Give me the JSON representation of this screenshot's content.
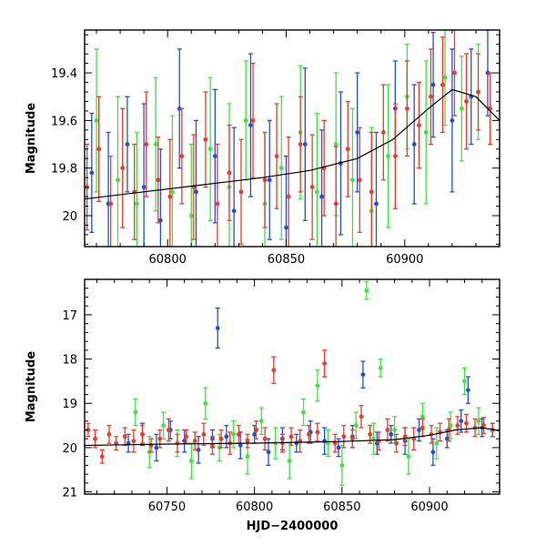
{
  "colors": {
    "blue": "#1f4fe0",
    "green": "#3ce63c",
    "red": "#f0392b",
    "model": "#000000"
  },
  "chart_data": [
    {
      "id": "top",
      "type": "scatter",
      "title": "",
      "xlabel": "",
      "ylabel": "Magnitude",
      "xlim": [
        60765,
        60940
      ],
      "ylim": [
        20.13,
        19.22
      ],
      "y_inverted": true,
      "grid": false,
      "xticks": [
        60800,
        60850,
        60900
      ],
      "xtick_labels": [
        "60800",
        "60850",
        "60900"
      ],
      "yticks": [
        19.4,
        19.6,
        19.8,
        20.0
      ],
      "ytick_labels": [
        "19.4",
        "19.6",
        "19.8",
        "20"
      ],
      "series": [
        {
          "color_key": "blue",
          "x": [
            60768,
            60775,
            60783,
            60790,
            60797,
            60805,
            60812,
            60820,
            60828,
            60835,
            60843,
            60850,
            60858,
            60865,
            60873,
            60880,
            60888,
            60896,
            60904,
            60912,
            60920,
            60928,
            60935
          ],
          "y": [
            19.82,
            19.95,
            19.7,
            19.88,
            20.02,
            19.55,
            19.9,
            19.75,
            19.98,
            19.62,
            19.85,
            20.05,
            19.7,
            19.92,
            19.78,
            19.65,
            19.95,
            19.55,
            19.7,
            19.45,
            19.6,
            19.5,
            19.4
          ],
          "err": [
            0.25,
            0.3,
            0.2,
            0.35,
            0.3,
            0.25,
            0.3,
            0.28,
            0.35,
            0.3,
            0.25,
            0.3,
            0.32,
            0.28,
            0.3,
            0.25,
            0.3,
            0.2,
            0.25,
            0.22,
            0.3,
            0.2,
            0.18
          ]
        },
        {
          "color_key": "green",
          "x": [
            60770,
            60779,
            60787,
            60795,
            60802,
            60810,
            60818,
            60826,
            60833,
            60841,
            60848,
            60856,
            60863,
            60871,
            60878,
            60886,
            60893,
            60901,
            60909,
            60917,
            60924,
            60931
          ],
          "y": [
            19.6,
            19.85,
            19.95,
            19.7,
            19.9,
            20.0,
            19.72,
            19.88,
            19.6,
            19.95,
            19.8,
            19.65,
            19.9,
            19.7,
            19.85,
            19.98,
            19.75,
            19.5,
            19.65,
            19.42,
            19.55,
            19.48
          ],
          "err": [
            0.3,
            0.35,
            0.3,
            0.28,
            0.32,
            0.3,
            0.3,
            0.35,
            0.25,
            0.3,
            0.3,
            0.28,
            0.33,
            0.3,
            0.3,
            0.35,
            0.3,
            0.22,
            0.3,
            0.2,
            0.22,
            0.2
          ]
        },
        {
          "color_key": "red",
          "x": [
            60766,
            60771,
            60776,
            60781,
            60786,
            60791,
            60796,
            60801,
            60806,
            60811,
            60816,
            60821,
            60826,
            60831,
            60836,
            60841,
            60846,
            60851,
            60856,
            60861,
            60866,
            60871,
            60876,
            60881,
            60886,
            60891,
            60896,
            60901,
            60906,
            60911,
            60916,
            60921,
            60926,
            60931,
            60936
          ],
          "y": [
            19.88,
            19.72,
            19.95,
            19.8,
            19.9,
            19.7,
            19.85,
            19.92,
            19.75,
            19.88,
            19.68,
            19.95,
            19.82,
            19.9,
            19.6,
            19.85,
            19.75,
            19.92,
            19.7,
            19.88,
            19.8,
            19.95,
            19.72,
            19.85,
            19.9,
            19.65,
            19.75,
            19.55,
            19.62,
            19.5,
            19.45,
            19.4,
            19.52,
            19.48,
            19.55
          ],
          "err": [
            0.18,
            0.22,
            0.2,
            0.25,
            0.2,
            0.22,
            0.18,
            0.24,
            0.2,
            0.22,
            0.2,
            0.25,
            0.2,
            0.22,
            0.24,
            0.2,
            0.22,
            0.25,
            0.2,
            0.22,
            0.2,
            0.24,
            0.2,
            0.22,
            0.25,
            0.2,
            0.22,
            0.2,
            0.18,
            0.2,
            0.2,
            0.18,
            0.2,
            0.16,
            0.15
          ]
        }
      ],
      "model": {
        "x": [
          60765,
          60790,
          60815,
          60840,
          60860,
          60880,
          60895,
          60910,
          60920,
          60930,
          60940
        ],
        "y": [
          19.93,
          19.9,
          19.87,
          19.84,
          19.81,
          19.76,
          19.68,
          19.55,
          19.47,
          19.5,
          19.6
        ]
      }
    },
    {
      "id": "bottom",
      "type": "scatter",
      "title": "",
      "xlabel": "HJD−2400000",
      "ylabel": "Magnitude",
      "xlim": [
        60703,
        60940
      ],
      "ylim": [
        21.05,
        16.2
      ],
      "y_inverted": true,
      "grid": false,
      "xticks": [
        60750,
        60800,
        60850,
        60900
      ],
      "xtick_labels": [
        "60750",
        "60800",
        "60850",
        "60900"
      ],
      "yticks": [
        17,
        18,
        19,
        20,
        21
      ],
      "ytick_labels": [
        "17",
        "18",
        "19",
        "20",
        "21"
      ],
      "series": [
        {
          "color_key": "blue",
          "x": [
            60728,
            60736,
            60744,
            60752,
            60760,
            60768,
            60776,
            60779,
            60784,
            60792,
            60800,
            60808,
            60816,
            60824,
            60832,
            60840,
            60848,
            60856,
            60862,
            60870,
            60878,
            60886,
            60894,
            60902,
            60910,
            60918,
            60922,
            60930,
            60936
          ],
          "y": [
            19.9,
            19.7,
            20.0,
            19.6,
            19.85,
            20.05,
            19.8,
            17.3,
            19.75,
            19.95,
            19.7,
            20.1,
            19.8,
            19.9,
            19.65,
            19.85,
            20.0,
            19.75,
            18.35,
            19.9,
            19.7,
            19.85,
            19.6,
            20.1,
            19.8,
            19.4,
            18.7,
            19.55,
            19.6
          ],
          "err": [
            0.2,
            0.25,
            0.3,
            0.2,
            0.25,
            0.3,
            0.2,
            0.45,
            0.25,
            0.3,
            0.2,
            0.3,
            0.25,
            0.2,
            0.25,
            0.3,
            0.2,
            0.25,
            0.3,
            0.25,
            0.2,
            0.3,
            0.25,
            0.3,
            0.2,
            0.25,
            0.3,
            0.2,
            0.15
          ]
        },
        {
          "color_key": "green",
          "x": [
            60732,
            60740,
            60748,
            60756,
            60764,
            60772,
            60780,
            60788,
            60796,
            60804,
            60812,
            60820,
            60828,
            60836,
            60842,
            60850,
            60858,
            60864,
            60868,
            60872,
            60880,
            60888,
            60896,
            60904,
            60912,
            60920,
            60928
          ],
          "y": [
            19.2,
            20.1,
            19.5,
            19.9,
            20.3,
            19.0,
            20.0,
            19.7,
            20.2,
            19.4,
            19.9,
            20.3,
            19.2,
            18.6,
            19.9,
            20.4,
            19.5,
            16.45,
            19.8,
            18.2,
            19.6,
            20.2,
            19.3,
            19.9,
            19.5,
            18.5,
            19.4
          ],
          "err": [
            0.3,
            0.35,
            0.3,
            0.3,
            0.4,
            0.35,
            0.3,
            0.3,
            0.4,
            0.3,
            0.35,
            0.4,
            0.3,
            0.35,
            0.3,
            0.45,
            0.3,
            0.2,
            0.35,
            0.2,
            0.3,
            0.4,
            0.3,
            0.35,
            0.3,
            0.3,
            0.3
          ]
        },
        {
          "color_key": "red",
          "x": [
            60705,
            60709,
            60713,
            60717,
            60721,
            60726,
            60731,
            60736,
            60741,
            60746,
            60751,
            60756,
            60761,
            60766,
            60771,
            60776,
            60781,
            60786,
            60791,
            60796,
            60801,
            60806,
            60811,
            60816,
            60821,
            60826,
            60831,
            60836,
            60840,
            60846,
            60851,
            60856,
            60861,
            60866,
            60871,
            60876,
            60881,
            60886,
            60891,
            60896,
            60901,
            60906,
            60911,
            60916,
            60921,
            60926,
            60931,
            60936
          ],
          "y": [
            19.6,
            19.8,
            20.2,
            19.7,
            19.9,
            19.75,
            19.85,
            19.7,
            19.95,
            19.8,
            19.6,
            19.9,
            19.75,
            19.85,
            19.7,
            19.95,
            19.8,
            19.9,
            19.7,
            19.85,
            19.6,
            19.8,
            18.25,
            19.9,
            19.75,
            19.85,
            19.7,
            19.65,
            18.1,
            19.9,
            19.75,
            19.8,
            19.3,
            19.7,
            19.85,
            19.6,
            19.9,
            19.75,
            19.8,
            19.55,
            19.7,
            19.65,
            19.6,
            19.5,
            19.45,
            19.55,
            19.5,
            19.6
          ],
          "err": [
            0.15,
            0.2,
            0.15,
            0.2,
            0.15,
            0.2,
            0.25,
            0.2,
            0.15,
            0.2,
            0.25,
            0.2,
            0.15,
            0.2,
            0.25,
            0.2,
            0.2,
            0.25,
            0.2,
            0.15,
            0.2,
            0.25,
            0.3,
            0.2,
            0.2,
            0.25,
            0.2,
            0.2,
            0.3,
            0.2,
            0.25,
            0.2,
            0.25,
            0.2,
            0.2,
            0.25,
            0.2,
            0.2,
            0.25,
            0.2,
            0.2,
            0.2,
            0.25,
            0.2,
            0.2,
            0.2,
            0.18,
            0.15
          ]
        }
      ],
      "model": {
        "x": [
          60703,
          60750,
          60800,
          60850,
          60880,
          60900,
          60915,
          60930,
          60940
        ],
        "y": [
          19.95,
          19.92,
          19.9,
          19.86,
          19.82,
          19.72,
          19.6,
          19.55,
          19.62
        ]
      }
    }
  ]
}
